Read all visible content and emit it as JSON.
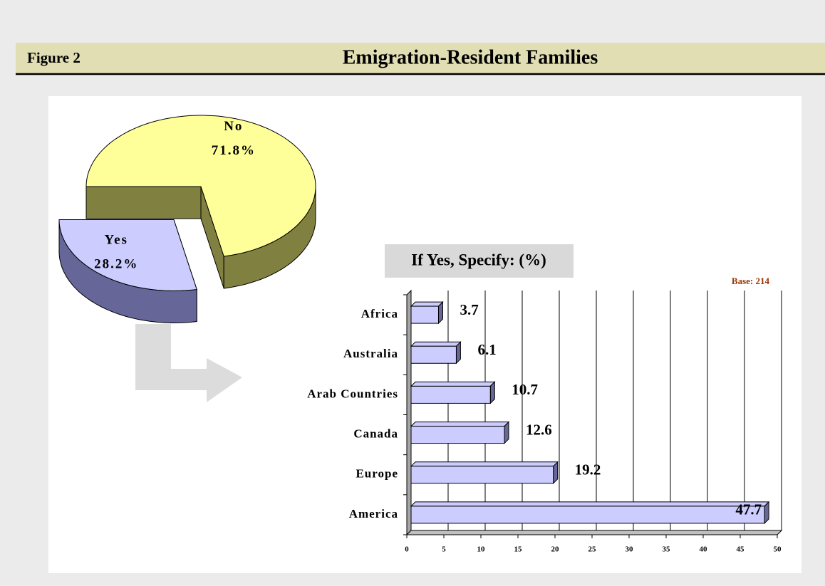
{
  "header": {
    "label": "Figure 2",
    "title": "Emigration-Resident Families"
  },
  "chart_data": [
    {
      "type": "pie",
      "categories": [
        "No",
        "Yes"
      ],
      "values": [
        71.8,
        28.2
      ],
      "value_labels": [
        "71.8%",
        "28.2%"
      ],
      "colors": [
        "#ffff99",
        "#ccccff"
      ],
      "side_colors": [
        "#808040",
        "#666699"
      ],
      "exploded": [
        false,
        true
      ]
    },
    {
      "type": "bar",
      "orientation": "horizontal",
      "title": "If Yes, Specify: (%)",
      "annotation": "Base: 214",
      "categories": [
        "Africa",
        "Australia",
        "Arab Countries",
        "Canada",
        "Europe",
        "America"
      ],
      "values": [
        3.7,
        6.1,
        10.7,
        12.6,
        19.2,
        47.7
      ],
      "color": "#ccccff",
      "side_color": "#666699",
      "xlim": [
        0,
        50
      ],
      "xticks": [
        0,
        5,
        10,
        15,
        20,
        25,
        30,
        35,
        40,
        45,
        50
      ],
      "grid": true
    }
  ]
}
